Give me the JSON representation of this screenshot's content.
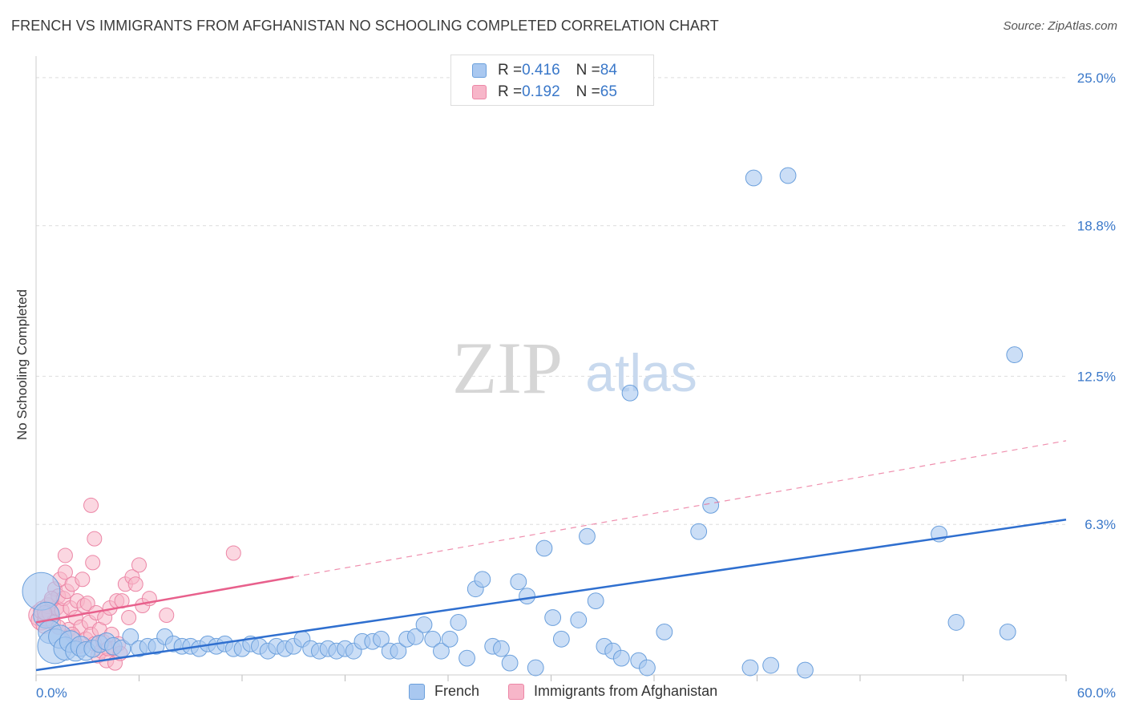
{
  "title": "FRENCH VS IMMIGRANTS FROM AFGHANISTAN NO SCHOOLING COMPLETED CORRELATION CHART",
  "source": "Source: ZipAtlas.com",
  "watermark": {
    "zip": "ZIP",
    "atlas": "atlas"
  },
  "colors": {
    "french_fill": "#a9c8f0",
    "french_stroke": "#6a9fdc",
    "french_line": "#2f6fcf",
    "afghan_fill": "#f7b6c9",
    "afghan_stroke": "#ec86a6",
    "afghan_line": "#e8608c",
    "tick_label": "#3a78c9",
    "grid": "#dddddd"
  },
  "legend": [
    {
      "r_label": "R = ",
      "r_value": "0.416",
      "n_label": "N = ",
      "n_value": "84"
    },
    {
      "r_label": "R = ",
      "r_value": "0.192",
      "n_label": "N = ",
      "n_value": "65"
    }
  ],
  "chart_data": {
    "type": "scatter",
    "title": "FRENCH VS IMMIGRANTS FROM AFGHANISTAN NO SCHOOLING COMPLETED CORRELATION CHART",
    "xlabel": "",
    "ylabel": "No Schooling Completed",
    "xlim": [
      0,
      60
    ],
    "ylim": [
      0,
      25.9
    ],
    "x_tick_labels": [
      "0.0%",
      "60.0%"
    ],
    "y_ticks": [
      6.3,
      12.5,
      18.8,
      25.0
    ],
    "y_tick_labels": [
      "6.3%",
      "12.5%",
      "18.8%",
      "25.0%"
    ],
    "grid": true,
    "legend_position": "bottom",
    "series": [
      {
        "name": "French",
        "r": 0.416,
        "n": 84,
        "trend": {
          "x": [
            0,
            60
          ],
          "y": [
            0.2,
            6.5
          ],
          "style": "solid"
        },
        "points": [
          [
            0.3,
            3.5,
            2.6
          ],
          [
            0.6,
            2.5,
            1.8
          ],
          [
            0.8,
            1.8,
            1.6
          ],
          [
            1.1,
            1.2,
            2.4
          ],
          [
            1.4,
            1.6,
            1.6
          ],
          [
            1.7,
            1.1,
            1.6
          ],
          [
            2.0,
            1.4,
            1.5
          ],
          [
            2.3,
            1.0,
            1.4
          ],
          [
            2.6,
            1.2,
            1.4
          ],
          [
            2.9,
            1.0,
            1.3
          ],
          [
            3.3,
            1.1,
            1.2
          ],
          [
            3.7,
            1.3,
            1.2
          ],
          [
            4.1,
            1.4,
            1.2
          ],
          [
            4.5,
            1.2,
            1.2
          ],
          [
            5.0,
            1.1,
            1.2
          ],
          [
            5.5,
            1.6,
            1.1
          ],
          [
            6.0,
            1.1,
            1.1
          ],
          [
            6.5,
            1.2,
            1.1
          ],
          [
            7.0,
            1.2,
            1.1
          ],
          [
            7.5,
            1.6,
            1.1
          ],
          [
            8.0,
            1.3,
            1.1
          ],
          [
            8.5,
            1.2,
            1.1
          ],
          [
            9.0,
            1.2,
            1.1
          ],
          [
            9.5,
            1.1,
            1.1
          ],
          [
            10.0,
            1.3,
            1.1
          ],
          [
            10.5,
            1.2,
            1.1
          ],
          [
            11.0,
            1.3,
            1.1
          ],
          [
            11.5,
            1.1,
            1.1
          ],
          [
            12.0,
            1.1,
            1.1
          ],
          [
            12.5,
            1.3,
            1.1
          ],
          [
            13.0,
            1.2,
            1.1
          ],
          [
            13.5,
            1.0,
            1.1
          ],
          [
            14.0,
            1.2,
            1.1
          ],
          [
            14.5,
            1.1,
            1.1
          ],
          [
            15.0,
            1.2,
            1.1
          ],
          [
            15.5,
            1.5,
            1.1
          ],
          [
            16.0,
            1.1,
            1.1
          ],
          [
            16.5,
            1.0,
            1.1
          ],
          [
            17.0,
            1.1,
            1.1
          ],
          [
            17.5,
            1.0,
            1.1
          ],
          [
            18.0,
            1.1,
            1.1
          ],
          [
            18.5,
            1.0,
            1.1
          ],
          [
            19.0,
            1.4,
            1.1
          ],
          [
            19.6,
            1.4,
            1.1
          ],
          [
            20.1,
            1.5,
            1.1
          ],
          [
            20.6,
            1.0,
            1.1
          ],
          [
            21.1,
            1.0,
            1.1
          ],
          [
            21.6,
            1.5,
            1.1
          ],
          [
            22.1,
            1.6,
            1.1
          ],
          [
            22.6,
            2.1,
            1.1
          ],
          [
            23.1,
            1.5,
            1.1
          ],
          [
            23.6,
            1.0,
            1.1
          ],
          [
            24.1,
            1.5,
            1.1
          ],
          [
            24.6,
            2.2,
            1.1
          ],
          [
            25.1,
            0.7,
            1.1
          ],
          [
            25.6,
            3.6,
            1.1
          ],
          [
            26.0,
            4.0,
            1.1
          ],
          [
            26.6,
            1.2,
            1.1
          ],
          [
            27.1,
            1.1,
            1.1
          ],
          [
            27.6,
            0.5,
            1.1
          ],
          [
            28.1,
            3.9,
            1.1
          ],
          [
            28.6,
            3.3,
            1.1
          ],
          [
            29.1,
            0.3,
            1.1
          ],
          [
            29.6,
            5.3,
            1.1
          ],
          [
            30.1,
            2.4,
            1.1
          ],
          [
            30.6,
            1.5,
            1.1
          ],
          [
            31.6,
            2.3,
            1.1
          ],
          [
            32.1,
            5.8,
            1.1
          ],
          [
            32.6,
            3.1,
            1.1
          ],
          [
            33.1,
            1.2,
            1.1
          ],
          [
            33.6,
            1.0,
            1.1
          ],
          [
            34.1,
            0.7,
            1.1
          ],
          [
            35.1,
            0.6,
            1.1
          ],
          [
            35.6,
            0.3,
            1.1
          ],
          [
            36.6,
            1.8,
            1.1
          ],
          [
            38.6,
            6.0,
            1.1
          ],
          [
            39.3,
            7.1,
            1.1
          ],
          [
            41.6,
            0.3,
            1.1
          ],
          [
            41.8,
            20.8,
            1.1
          ],
          [
            42.8,
            0.4,
            1.1
          ],
          [
            43.8,
            20.9,
            1.1
          ],
          [
            44.8,
            0.2,
            1.1
          ],
          [
            52.6,
            5.9,
            1.1
          ],
          [
            53.6,
            2.2,
            1.1
          ],
          [
            56.6,
            1.8,
            1.1
          ],
          [
            57.0,
            13.4,
            1.1
          ],
          [
            34.6,
            11.8,
            1.1
          ]
        ]
      },
      {
        "name": "Immigrants from Afghanistan",
        "r": 0.192,
        "n": 65,
        "trend": {
          "x": [
            0,
            60
          ],
          "y": [
            2.2,
            9.8
          ],
          "style": "solid-then-dashed",
          "solid_until_x": 15.0
        },
        "points": [
          [
            0.2,
            2.5,
            1.5
          ],
          [
            0.3,
            2.3,
            1.4
          ],
          [
            0.4,
            2.7,
            1.3
          ],
          [
            0.5,
            2.1,
            1.2
          ],
          [
            0.6,
            2.4,
            1.2
          ],
          [
            0.7,
            2.9,
            1.1
          ],
          [
            0.8,
            2.6,
            1.1
          ],
          [
            0.9,
            3.1,
            1.0
          ],
          [
            1.0,
            2.2,
            1.0
          ],
          [
            1.1,
            3.6,
            1.0
          ],
          [
            1.2,
            2.8,
            1.0
          ],
          [
            1.3,
            3.3,
            1.0
          ],
          [
            1.4,
            4.0,
            1.0
          ],
          [
            1.5,
            2.7,
            1.0
          ],
          [
            1.6,
            3.2,
            1.0
          ],
          [
            1.7,
            4.3,
            1.0
          ],
          [
            1.8,
            3.5,
            1.0
          ],
          [
            1.9,
            1.9,
            1.0
          ],
          [
            2.0,
            2.8,
            1.0
          ],
          [
            2.1,
            3.8,
            1.0
          ],
          [
            2.2,
            1.6,
            1.0
          ],
          [
            2.3,
            2.4,
            1.0
          ],
          [
            2.4,
            3.1,
            1.0
          ],
          [
            2.5,
            1.2,
            1.0
          ],
          [
            2.6,
            2.0,
            1.0
          ],
          [
            2.7,
            4.0,
            1.0
          ],
          [
            2.8,
            2.9,
            1.0
          ],
          [
            2.9,
            1.5,
            1.0
          ],
          [
            3.0,
            3.0,
            1.0
          ],
          [
            3.1,
            2.2,
            1.0
          ],
          [
            3.2,
            1.7,
            1.0
          ],
          [
            3.3,
            4.7,
            1.0
          ],
          [
            3.4,
            1.3,
            1.0
          ],
          [
            3.5,
            2.6,
            1.0
          ],
          [
            3.6,
            0.8,
            1.0
          ],
          [
            3.7,
            1.9,
            1.0
          ],
          [
            3.8,
            1.0,
            1.0
          ],
          [
            3.9,
            1.4,
            1.0
          ],
          [
            4.0,
            2.4,
            1.0
          ],
          [
            4.1,
            0.6,
            1.0
          ],
          [
            4.2,
            1.1,
            1.0
          ],
          [
            4.3,
            2.8,
            1.0
          ],
          [
            4.4,
            1.7,
            1.0
          ],
          [
            4.5,
            1.1,
            1.0
          ],
          [
            4.6,
            0.5,
            1.0
          ],
          [
            4.7,
            3.1,
            1.0
          ],
          [
            4.8,
            1.3,
            1.0
          ],
          [
            4.9,
            0.9,
            1.0
          ],
          [
            5.0,
            3.1,
            1.0
          ],
          [
            5.2,
            3.8,
            1.0
          ],
          [
            5.4,
            2.4,
            1.0
          ],
          [
            5.6,
            4.1,
            1.0
          ],
          [
            5.8,
            3.8,
            1.0
          ],
          [
            6.0,
            4.6,
            1.0
          ],
          [
            6.2,
            2.9,
            1.0
          ],
          [
            6.6,
            3.2,
            1.0
          ],
          [
            7.6,
            2.5,
            1.0
          ],
          [
            3.2,
            7.1,
            1.0
          ],
          [
            3.4,
            5.7,
            1.0
          ],
          [
            1.7,
            5.0,
            1.0
          ],
          [
            11.5,
            5.1,
            1.0
          ],
          [
            0.9,
            3.2,
            1.0
          ],
          [
            1.3,
            2.0,
            1.0
          ],
          [
            2.1,
            1.7,
            1.0
          ],
          [
            0.5,
            2.6,
            1.0
          ]
        ]
      }
    ]
  }
}
